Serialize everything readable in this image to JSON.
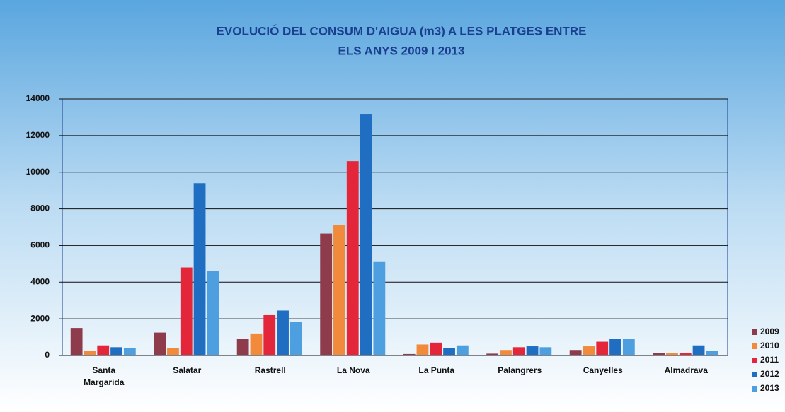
{
  "chart_data": {
    "type": "bar",
    "title": [
      "EVOLUCIÓ DEL CONSUM D'AIGUA (m3) A LES PLATGES ENTRE",
      "ELS ANYS 2009 I  2013"
    ],
    "categories": [
      [
        "Santa",
        "Margarida"
      ],
      [
        "Salatar"
      ],
      [
        "Rastrell"
      ],
      [
        "La Nova"
      ],
      [
        "La Punta"
      ],
      [
        "Palangrers"
      ],
      [
        "Canyelles"
      ],
      [
        "Almadrava"
      ]
    ],
    "series": [
      {
        "name": "2009",
        "color": "#8e3b4c",
        "values": [
          1500,
          1250,
          900,
          6650,
          80,
          100,
          300,
          150
        ]
      },
      {
        "name": "2010",
        "color": "#f28a3c",
        "values": [
          250,
          400,
          1200,
          7100,
          600,
          300,
          500,
          150
        ]
      },
      {
        "name": "2011",
        "color": "#e3263a",
        "values": [
          550,
          4800,
          2200,
          10600,
          700,
          450,
          750,
          150
        ]
      },
      {
        "name": "2012",
        "color": "#1f6ec2",
        "values": [
          450,
          9400,
          2450,
          13150,
          400,
          500,
          900,
          550
        ]
      },
      {
        "name": "2013",
        "color": "#4d9fe0",
        "values": [
          400,
          4600,
          1850,
          5100,
          550,
          450,
          900,
          250
        ]
      }
    ],
    "ylim": [
      0,
      14000
    ],
    "yticks": [
      0,
      2000,
      4000,
      6000,
      8000,
      10000,
      12000,
      14000
    ],
    "grid": true
  }
}
